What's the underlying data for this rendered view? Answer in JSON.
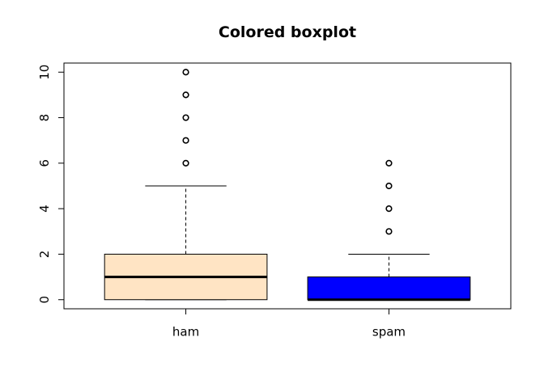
{
  "chart_data": {
    "type": "boxplot",
    "title": "Colored boxplot",
    "xlabel": "",
    "ylabel": "",
    "ylim": [
      -0.4,
      10.4
    ],
    "yticks": [
      0,
      2,
      4,
      6,
      8,
      10
    ],
    "categories": [
      "ham",
      "spam"
    ],
    "boxes": [
      {
        "name": "ham",
        "fill": "#FFE4C4",
        "min": 0,
        "q1": 0,
        "median": 1,
        "q3": 2,
        "max": 5,
        "outliers": [
          6,
          7,
          8,
          9,
          10
        ]
      },
      {
        "name": "spam",
        "fill": "#0000FF",
        "min": 0,
        "q1": 0,
        "median": 0,
        "q3": 1,
        "max": 2,
        "outliers": [
          3,
          4,
          5,
          6
        ]
      }
    ],
    "grid": false,
    "legend": "none"
  }
}
